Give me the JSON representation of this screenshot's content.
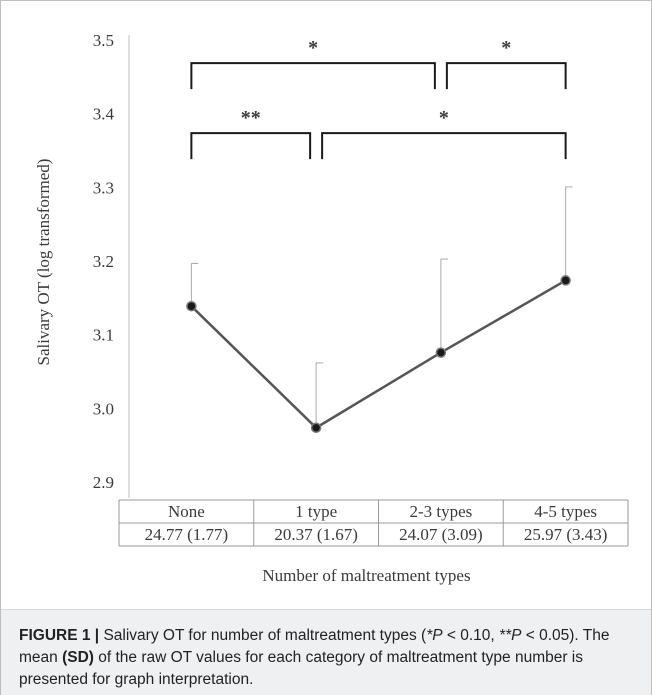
{
  "chart_data": {
    "type": "line",
    "ylabel": "Salivary OT  (log transformed)",
    "xlabel": "Number of maltreatment types",
    "ylim": [
      2.9,
      3.5
    ],
    "yticks": [
      "3.5",
      "3.4",
      "3.3",
      "3.2",
      "3.1",
      "3.0",
      "2.9"
    ],
    "ytick_values": [
      3.5,
      3.4,
      3.3,
      3.2,
      3.1,
      3.0,
      2.9
    ],
    "grid": false,
    "categories": [
      "None",
      "1 type",
      "2-3 types",
      "4-5 types"
    ],
    "values": [
      3.14,
      2.975,
      3.077,
      3.175
    ],
    "error_upper": [
      3.198,
      3.063,
      3.204,
      3.302
    ],
    "table_row": [
      "24.77 (1.77)",
      "20.37 (1.67)",
      "24.07 (3.09)",
      "25.97 (3.43)"
    ],
    "significance": [
      {
        "from": 0,
        "to": 2,
        "y": 3.47,
        "label": "*"
      },
      {
        "from": 2,
        "to": 3,
        "y": 3.47,
        "label": "*"
      },
      {
        "from": 0,
        "to": 1,
        "y": 3.375,
        "label": "**"
      },
      {
        "from": 1,
        "to": 3,
        "y": 3.375,
        "label": "*"
      }
    ]
  },
  "caption": {
    "label": "FIGURE 1 |",
    "t1": " Salivary OT for number of maltreatment types (",
    "p1": "*P",
    "t2": " < 0.10, ",
    "p2": "**P",
    "t3": " < 0.05). The mean ",
    "sd": "(SD)",
    "t4": " of the raw OT values for each category of maltreatment type number is presented for graph interpretation."
  }
}
